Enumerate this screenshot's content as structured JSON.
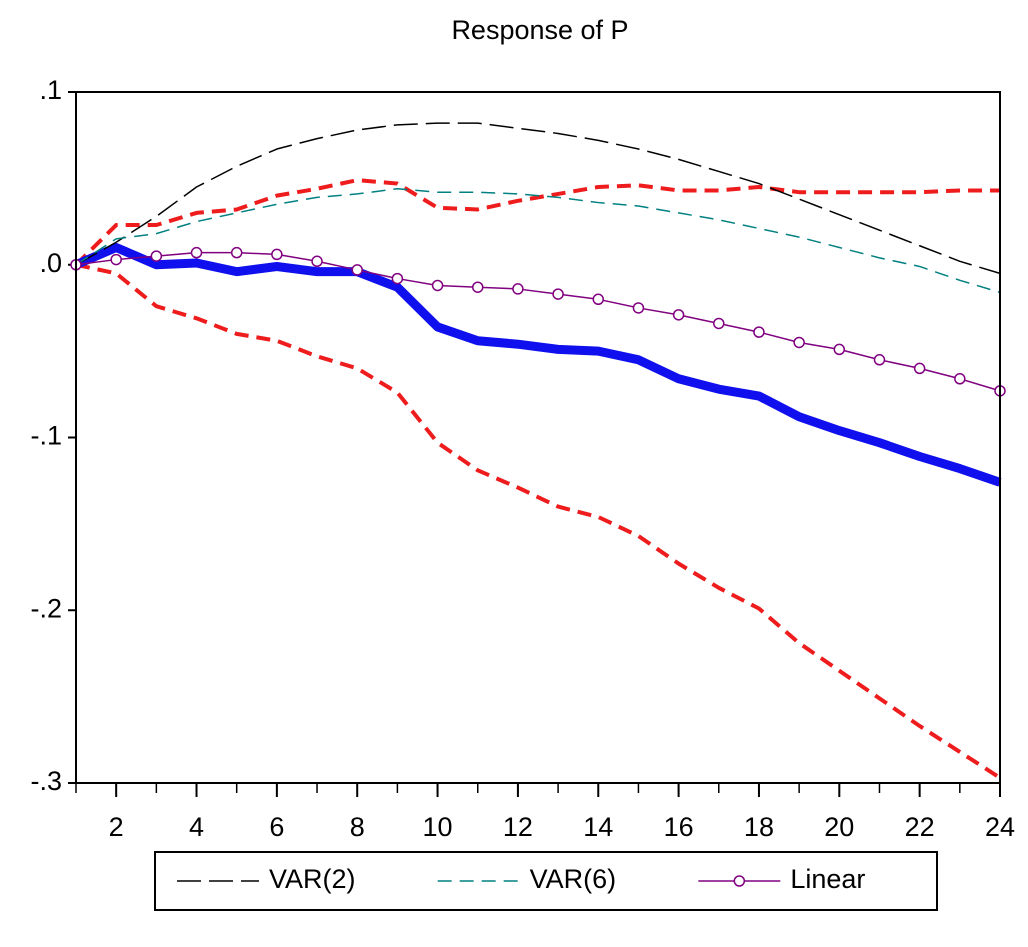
{
  "chart_data": {
    "type": "line",
    "title": "Response of P",
    "x": [
      1,
      2,
      3,
      4,
      5,
      6,
      7,
      8,
      9,
      10,
      11,
      12,
      13,
      14,
      15,
      16,
      17,
      18,
      19,
      20,
      21,
      22,
      23,
      24
    ],
    "xlim": [
      1,
      24
    ],
    "xticks": [
      2,
      4,
      6,
      8,
      10,
      12,
      14,
      16,
      18,
      20,
      22,
      24
    ],
    "ylim": [
      -0.3,
      0.1
    ],
    "yticks": [
      {
        "value": 0.1,
        "label": ".1"
      },
      {
        "value": 0,
        "label": ".0"
      },
      {
        "value": -0.1,
        "label": "-.1"
      },
      {
        "value": -0.2,
        "label": "-.2"
      },
      {
        "value": -0.3,
        "label": "-.3"
      }
    ],
    "legend": "bottom",
    "series": [
      {
        "color": "#ee1c1c",
        "style": "dashed",
        "linewidth": 4,
        "values": [
          0,
          0.023,
          0.023,
          0.03,
          0.032,
          0.04,
          0.044,
          0.049,
          0.047,
          0.033,
          0.032,
          0.037,
          0.041,
          0.045,
          0.046,
          0.043,
          0.043,
          0.045,
          0.042,
          0.042,
          0.042,
          0.042,
          0.043,
          0.043
        ]
      },
      {
        "color": "#ee1c1c",
        "style": "dashed",
        "linewidth": 4,
        "values": [
          0,
          -0.005,
          -0.024,
          -0.031,
          -0.04,
          -0.044,
          -0.053,
          -0.06,
          -0.074,
          -0.103,
          -0.119,
          -0.129,
          -0.14,
          -0.146,
          -0.157,
          -0.173,
          -0.187,
          -0.199,
          -0.219,
          -0.235,
          -0.251,
          -0.267,
          -0.282,
          -0.297
        ]
      },
      {
        "color": "#1010ee",
        "style": "solid",
        "linewidth": 9,
        "values": [
          0,
          0.01,
          0.0,
          0.001,
          -0.004,
          -0.001,
          -0.004,
          -0.004,
          -0.013,
          -0.036,
          -0.044,
          -0.046,
          -0.049,
          -0.05,
          -0.055,
          -0.066,
          -0.072,
          -0.076,
          -0.088,
          -0.096,
          -0.103,
          -0.111,
          -0.118,
          -0.126
        ]
      },
      {
        "name": "VAR(2)",
        "color": "#000000",
        "style": "long-dash",
        "linewidth": 1.5,
        "values": [
          0,
          0.013,
          0.028,
          0.045,
          0.057,
          0.067,
          0.073,
          0.078,
          0.081,
          0.082,
          0.082,
          0.079,
          0.076,
          0.072,
          0.067,
          0.061,
          0.054,
          0.047,
          0.038,
          0.029,
          0.02,
          0.011,
          0.002,
          -0.005
        ]
      },
      {
        "name": "VAR(6)",
        "color": "#008080",
        "style": "dashed",
        "linewidth": 1.5,
        "values": [
          0,
          0.015,
          0.018,
          0.025,
          0.03,
          0.035,
          0.039,
          0.041,
          0.044,
          0.042,
          0.042,
          0.041,
          0.039,
          0.036,
          0.034,
          0.03,
          0.026,
          0.021,
          0.016,
          0.01,
          0.004,
          -0.001,
          -0.009,
          -0.016
        ]
      },
      {
        "name": "Linear",
        "color": "#800080",
        "style": "solid",
        "linewidth": 1.5,
        "marker": "circle",
        "values": [
          0,
          0.003,
          0.005,
          0.007,
          0.007,
          0.006,
          0.002,
          -0.003,
          -0.008,
          -0.012,
          -0.013,
          -0.014,
          -0.017,
          -0.02,
          -0.025,
          -0.029,
          -0.034,
          -0.039,
          -0.045,
          -0.049,
          -0.055,
          -0.06,
          -0.066,
          -0.073
        ]
      }
    ]
  }
}
